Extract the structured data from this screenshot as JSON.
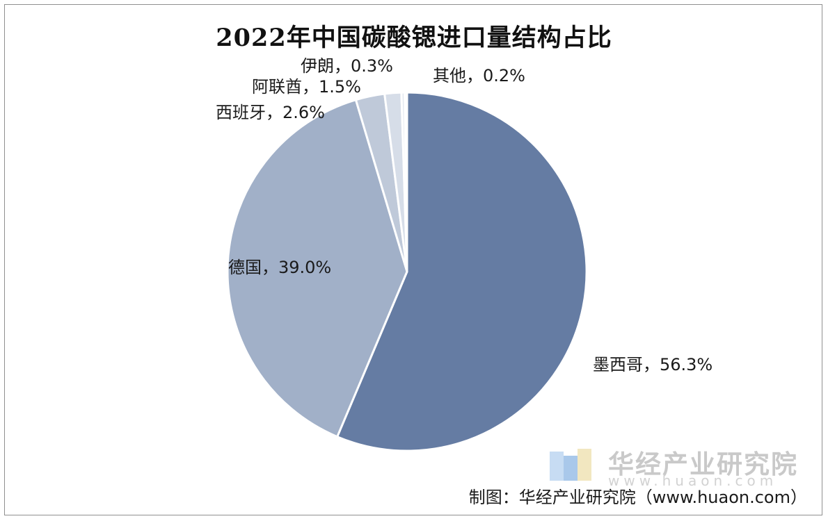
{
  "chart_data": {
    "type": "pie",
    "title": "2022年中国碳酸锶进口量结构占比",
    "unit": "%",
    "slices": [
      {
        "label": "墨西哥",
        "value": 56.3,
        "display": "墨西哥，56.3%",
        "color": "#657ca3"
      },
      {
        "label": "德国",
        "value": 39.0,
        "display": "德国，39.0%",
        "color": "#a1b0c8"
      },
      {
        "label": "西班牙",
        "value": 2.6,
        "display": "西班牙，2.6%",
        "color": "#bfc9d9"
      },
      {
        "label": "阿联酋",
        "value": 1.5,
        "display": "阿联酋，1.5%",
        "color": "#d6dde8"
      },
      {
        "label": "伊朗",
        "value": 0.3,
        "display": "伊朗，0.3%",
        "color": "#e4e9f0"
      },
      {
        "label": "其他",
        "value": 0.2,
        "display": "其他，0.2%",
        "color": "#eef1f6"
      }
    ],
    "legend": "none"
  },
  "watermark": {
    "name": "华经产业研究院",
    "url": "www.huaon.com"
  },
  "source": "制图：华经产业研究院（www.huaon.com）"
}
